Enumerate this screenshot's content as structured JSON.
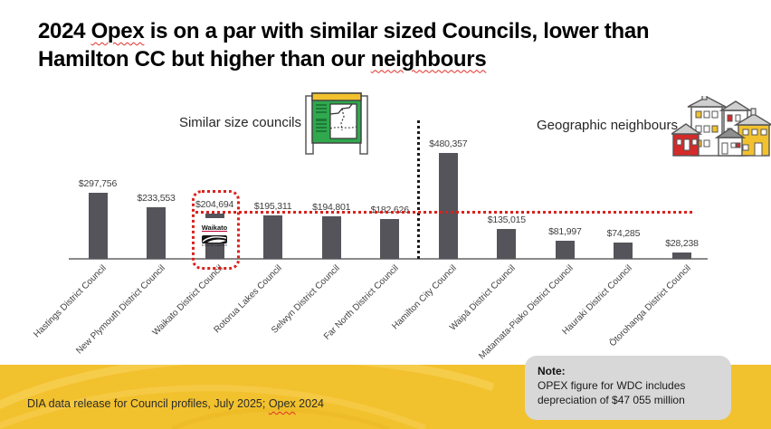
{
  "slide": {
    "title_segments": [
      {
        "text": "2024 ",
        "underline": "none"
      },
      {
        "text": "Opex",
        "underline": "wavy"
      },
      {
        "text": " is on a par with similar sized Councils, lower than\nHamilton CC but higher than our ",
        "underline": "none"
      },
      {
        "text": "neighbours",
        "underline": "wavy"
      }
    ],
    "group_labels": {
      "left": "Similar size councils",
      "right": "Geographic neighbours"
    },
    "waikato_logo": {
      "name": "Waikato",
      "subtitle": "District Council"
    },
    "note": {
      "title": "Note:",
      "body": "OPEX figure for WDC includes depreciation of $47 055 million"
    },
    "footer_segments": [
      {
        "text": "DIA data release for Council profiles, July 2025; ",
        "underline": "none"
      },
      {
        "text": "Opex",
        "underline": "wavy"
      },
      {
        "text": " 2024",
        "underline": "none"
      }
    ]
  },
  "chart_data": {
    "type": "bar",
    "categories": [
      "Hastings District Council",
      "New Plymouth District Council",
      "Waikato District Council",
      "Rotorua Lakes Council",
      "Selwyn District Council",
      "Far North District Council",
      "Hamilton City Council",
      "Waipā District Council",
      "Matamata-Piako District Council",
      "Hauraki District Council",
      "Ōtorohanga District Council"
    ],
    "values": [
      297756,
      233553,
      204694,
      195311,
      194801,
      182626,
      480357,
      135015,
      81997,
      74285,
      28238
    ],
    "value_labels": [
      "$297,756",
      "$233,553",
      "$204,694",
      "$195,311",
      "$194,801",
      "$182,626",
      "$480,357",
      "$135,015",
      "$81,997",
      "$74,285",
      "$28,238"
    ],
    "title": "",
    "xlabel": "",
    "ylabel": "",
    "ylim": [
      0,
      500000
    ],
    "grid": false,
    "legend": "none",
    "groups": [
      {
        "label": "Similar size councils",
        "from_index": 0,
        "to_index": 5
      },
      {
        "label": "Geographic neighbours",
        "from_index": 6,
        "to_index": 10
      }
    ],
    "divider_after_index": 5,
    "highlight": {
      "index": 2,
      "style": "red-dotted-outline",
      "overlay_logo": "Waikato District Council"
    },
    "reference_line": {
      "value": 204694,
      "style": "dotted",
      "note": "level of Waikato District Council opex"
    }
  },
  "colors": {
    "bar": "#54545a",
    "reference_line": "#d9221c",
    "highlight_outline": "#d9221c",
    "footer_band": "#f2c12e",
    "note_background": "#d8d8d8",
    "axis": "#8a8a8a",
    "icon_green": "#2fa84e",
    "icon_yellow": "#f2c12e",
    "icon_red": "#d42a2a"
  }
}
